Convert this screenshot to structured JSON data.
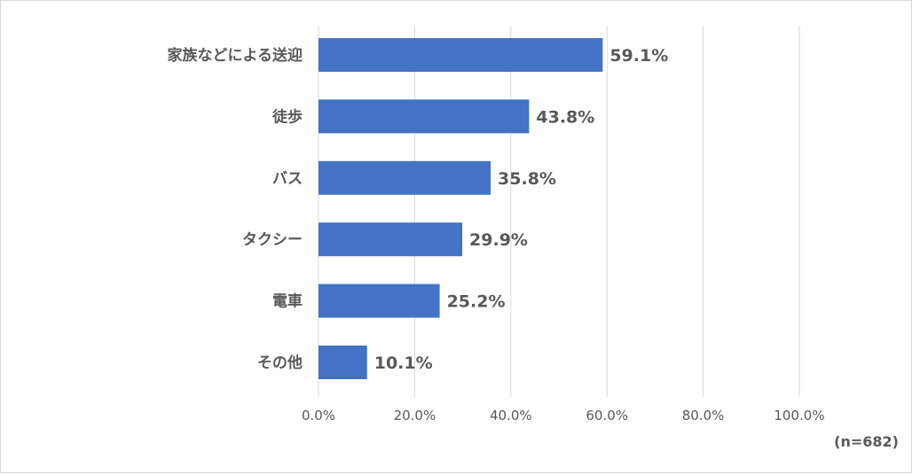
{
  "chart_data": {
    "type": "bar",
    "orientation": "horizontal",
    "categories": [
      "家族などによる送迎",
      "徒歩",
      "バス",
      "タクシー",
      "電車",
      "その他"
    ],
    "values": [
      59.1,
      43.8,
      35.8,
      29.9,
      25.2,
      10.1
    ],
    "value_labels": [
      "59.1%",
      "43.8%",
      "35.8%",
      "29.9%",
      "25.2%",
      "10.1%"
    ],
    "xlim": [
      0,
      100
    ],
    "x_ticks": [
      0,
      20,
      40,
      60,
      80,
      100
    ],
    "x_tick_labels": [
      "0.0%",
      "20.0%",
      "40.0%",
      "60.0%",
      "80.0%",
      "100.0%"
    ],
    "grid": true,
    "bar_color": "#4472c4",
    "grid_color": "#d9d9d9",
    "sample_note": "(n=682)"
  }
}
